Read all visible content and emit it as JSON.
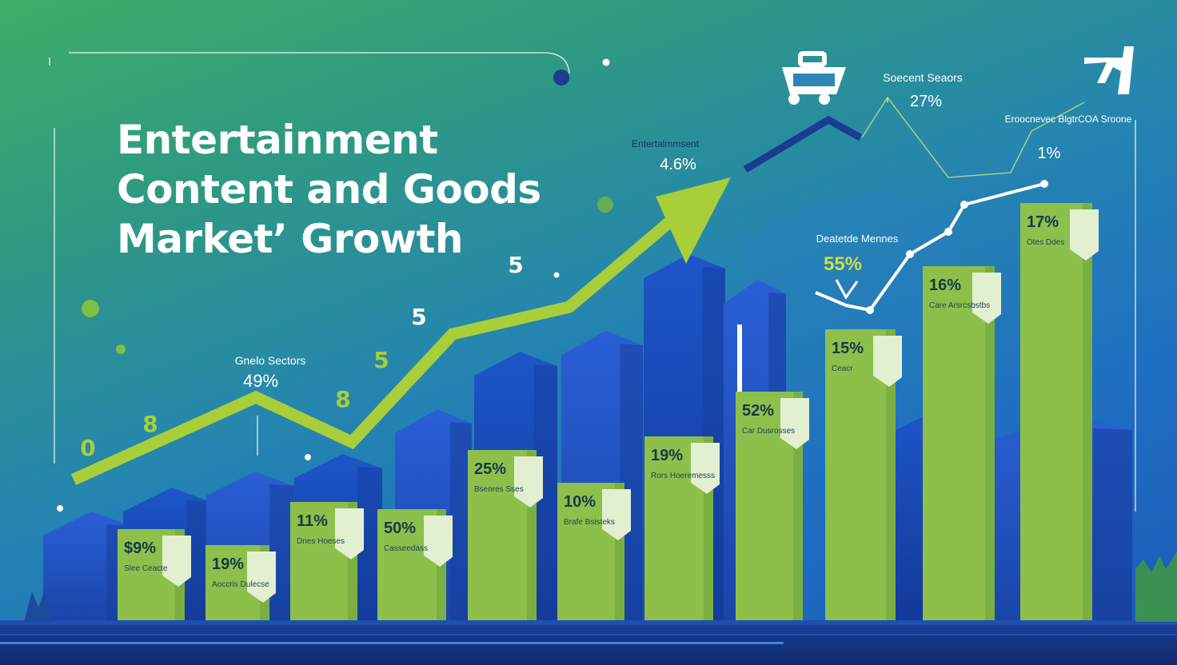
{
  "title_lines": [
    "Entertainment",
    "Content and Goods",
    "Market’ Growth"
  ],
  "colors": {
    "bar_green": "#8cc04b",
    "bar_green_dark": "#6ea53a",
    "building_blue": "#2456c8",
    "building_dark": "#163f9c",
    "trend_arrow": "#a8cf3a",
    "white_line": "#ffffff"
  },
  "icons": [
    "shopping-cart-icon",
    "trend-arrow-icon"
  ],
  "chart_data": {
    "type": "bar",
    "title": "Entertainment Content and Goods Market’ Growth",
    "bars": [
      {
        "label": "Slee Ceacte",
        "value_text": "$9%",
        "value": 9
      },
      {
        "label": "Aoccris Dulecse",
        "value_text": "19%",
        "value": 19
      },
      {
        "label": "Dnes Hoeses",
        "value_text": "11%",
        "value": 11
      },
      {
        "label": "Casseedass",
        "value_text": "50%",
        "value": 50
      },
      {
        "label": "Bsenres Sses",
        "value_text": "25%",
        "value": 25
      },
      {
        "label": "Brafe Bsisteks",
        "value_text": "10%",
        "value": 10
      },
      {
        "label": "Rors Hoeremesss",
        "value_text": "19%",
        "value": 19
      },
      {
        "label": "Car Dusrosses",
        "value_text": "52%",
        "value": 52
      },
      {
        "label": "Ceacr",
        "value_text": "15%",
        "value": 15
      },
      {
        "label": "Care Arsrcsbstbs",
        "value_text": "16%",
        "value": 16
      },
      {
        "label": "Otes Ddes",
        "value_text": "17%",
        "value": 17
      }
    ],
    "annotations": [
      {
        "label": "Gnelo Sectors",
        "value": "49%"
      },
      {
        "label": "Entertalmmsent",
        "value": "4.6%"
      },
      {
        "label": "Soecent Seaors",
        "value": "27%"
      },
      {
        "label": "Eroocnevec BlgtrCOA Sroone",
        "value": "1%"
      },
      {
        "label": "Deatetde Mennes",
        "value": "55%"
      }
    ],
    "floating_numbers": [
      "0",
      "8",
      "8",
      "5",
      "5",
      "5"
    ]
  }
}
